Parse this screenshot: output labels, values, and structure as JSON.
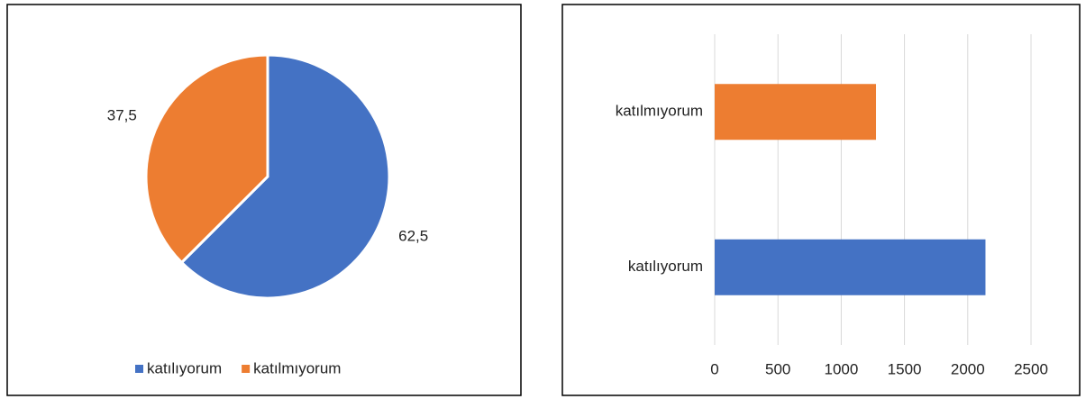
{
  "chart_data": [
    {
      "type": "pie",
      "categories": [
        "katılıyorum",
        "katılmıyorum"
      ],
      "values": [
        62.5,
        37.5
      ],
      "value_labels": [
        "62,5",
        "37,5"
      ],
      "colors": [
        "#4472c4",
        "#ed7d31"
      ],
      "legend": "bottom"
    },
    {
      "type": "bar",
      "orientation": "horizontal",
      "categories": [
        "katılıyorum",
        "katılmıyorum"
      ],
      "values": [
        2140,
        1275
      ],
      "colors": [
        "#4472c4",
        "#ed7d31"
      ],
      "xlim": [
        0,
        2500
      ],
      "xticks": [
        0,
        500,
        1000,
        1500,
        2000,
        2500
      ],
      "grid": true
    }
  ]
}
